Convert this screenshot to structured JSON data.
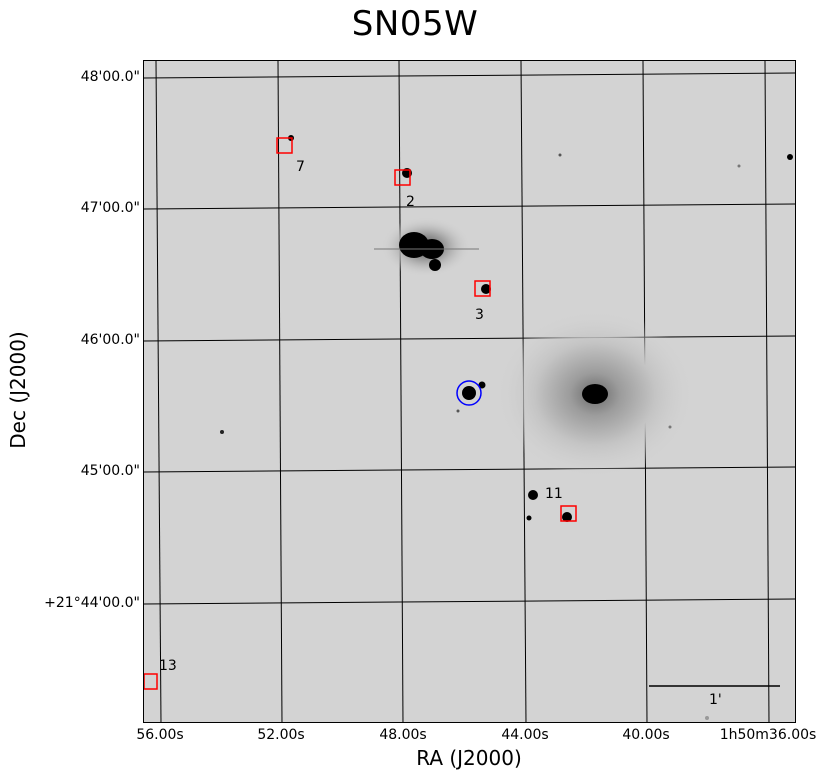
{
  "title": "SN05W",
  "axes": {
    "xlabel": "RA (J2000)",
    "ylabel": "Dec (J2000)",
    "yticks": [
      "48'00.0\"",
      "47'00.0\"",
      "46'00.0\"",
      "45'00.0\"",
      "+21°44'00.0\""
    ],
    "xticks": [
      "56.00s",
      "52.00s",
      "48.00s",
      "44.00s",
      "40.00s",
      "1h50m36.00s"
    ]
  },
  "sources": [
    {
      "label": "7"
    },
    {
      "label": "2"
    },
    {
      "label": "3"
    },
    {
      "label": "11"
    },
    {
      "label": "13"
    }
  ],
  "scale_bar": {
    "label": "1'"
  },
  "colors": {
    "background_sky": "#d3d3d3",
    "marker_box": "#ff0000",
    "target_circle": "#0000ff",
    "grid": "#000000"
  }
}
